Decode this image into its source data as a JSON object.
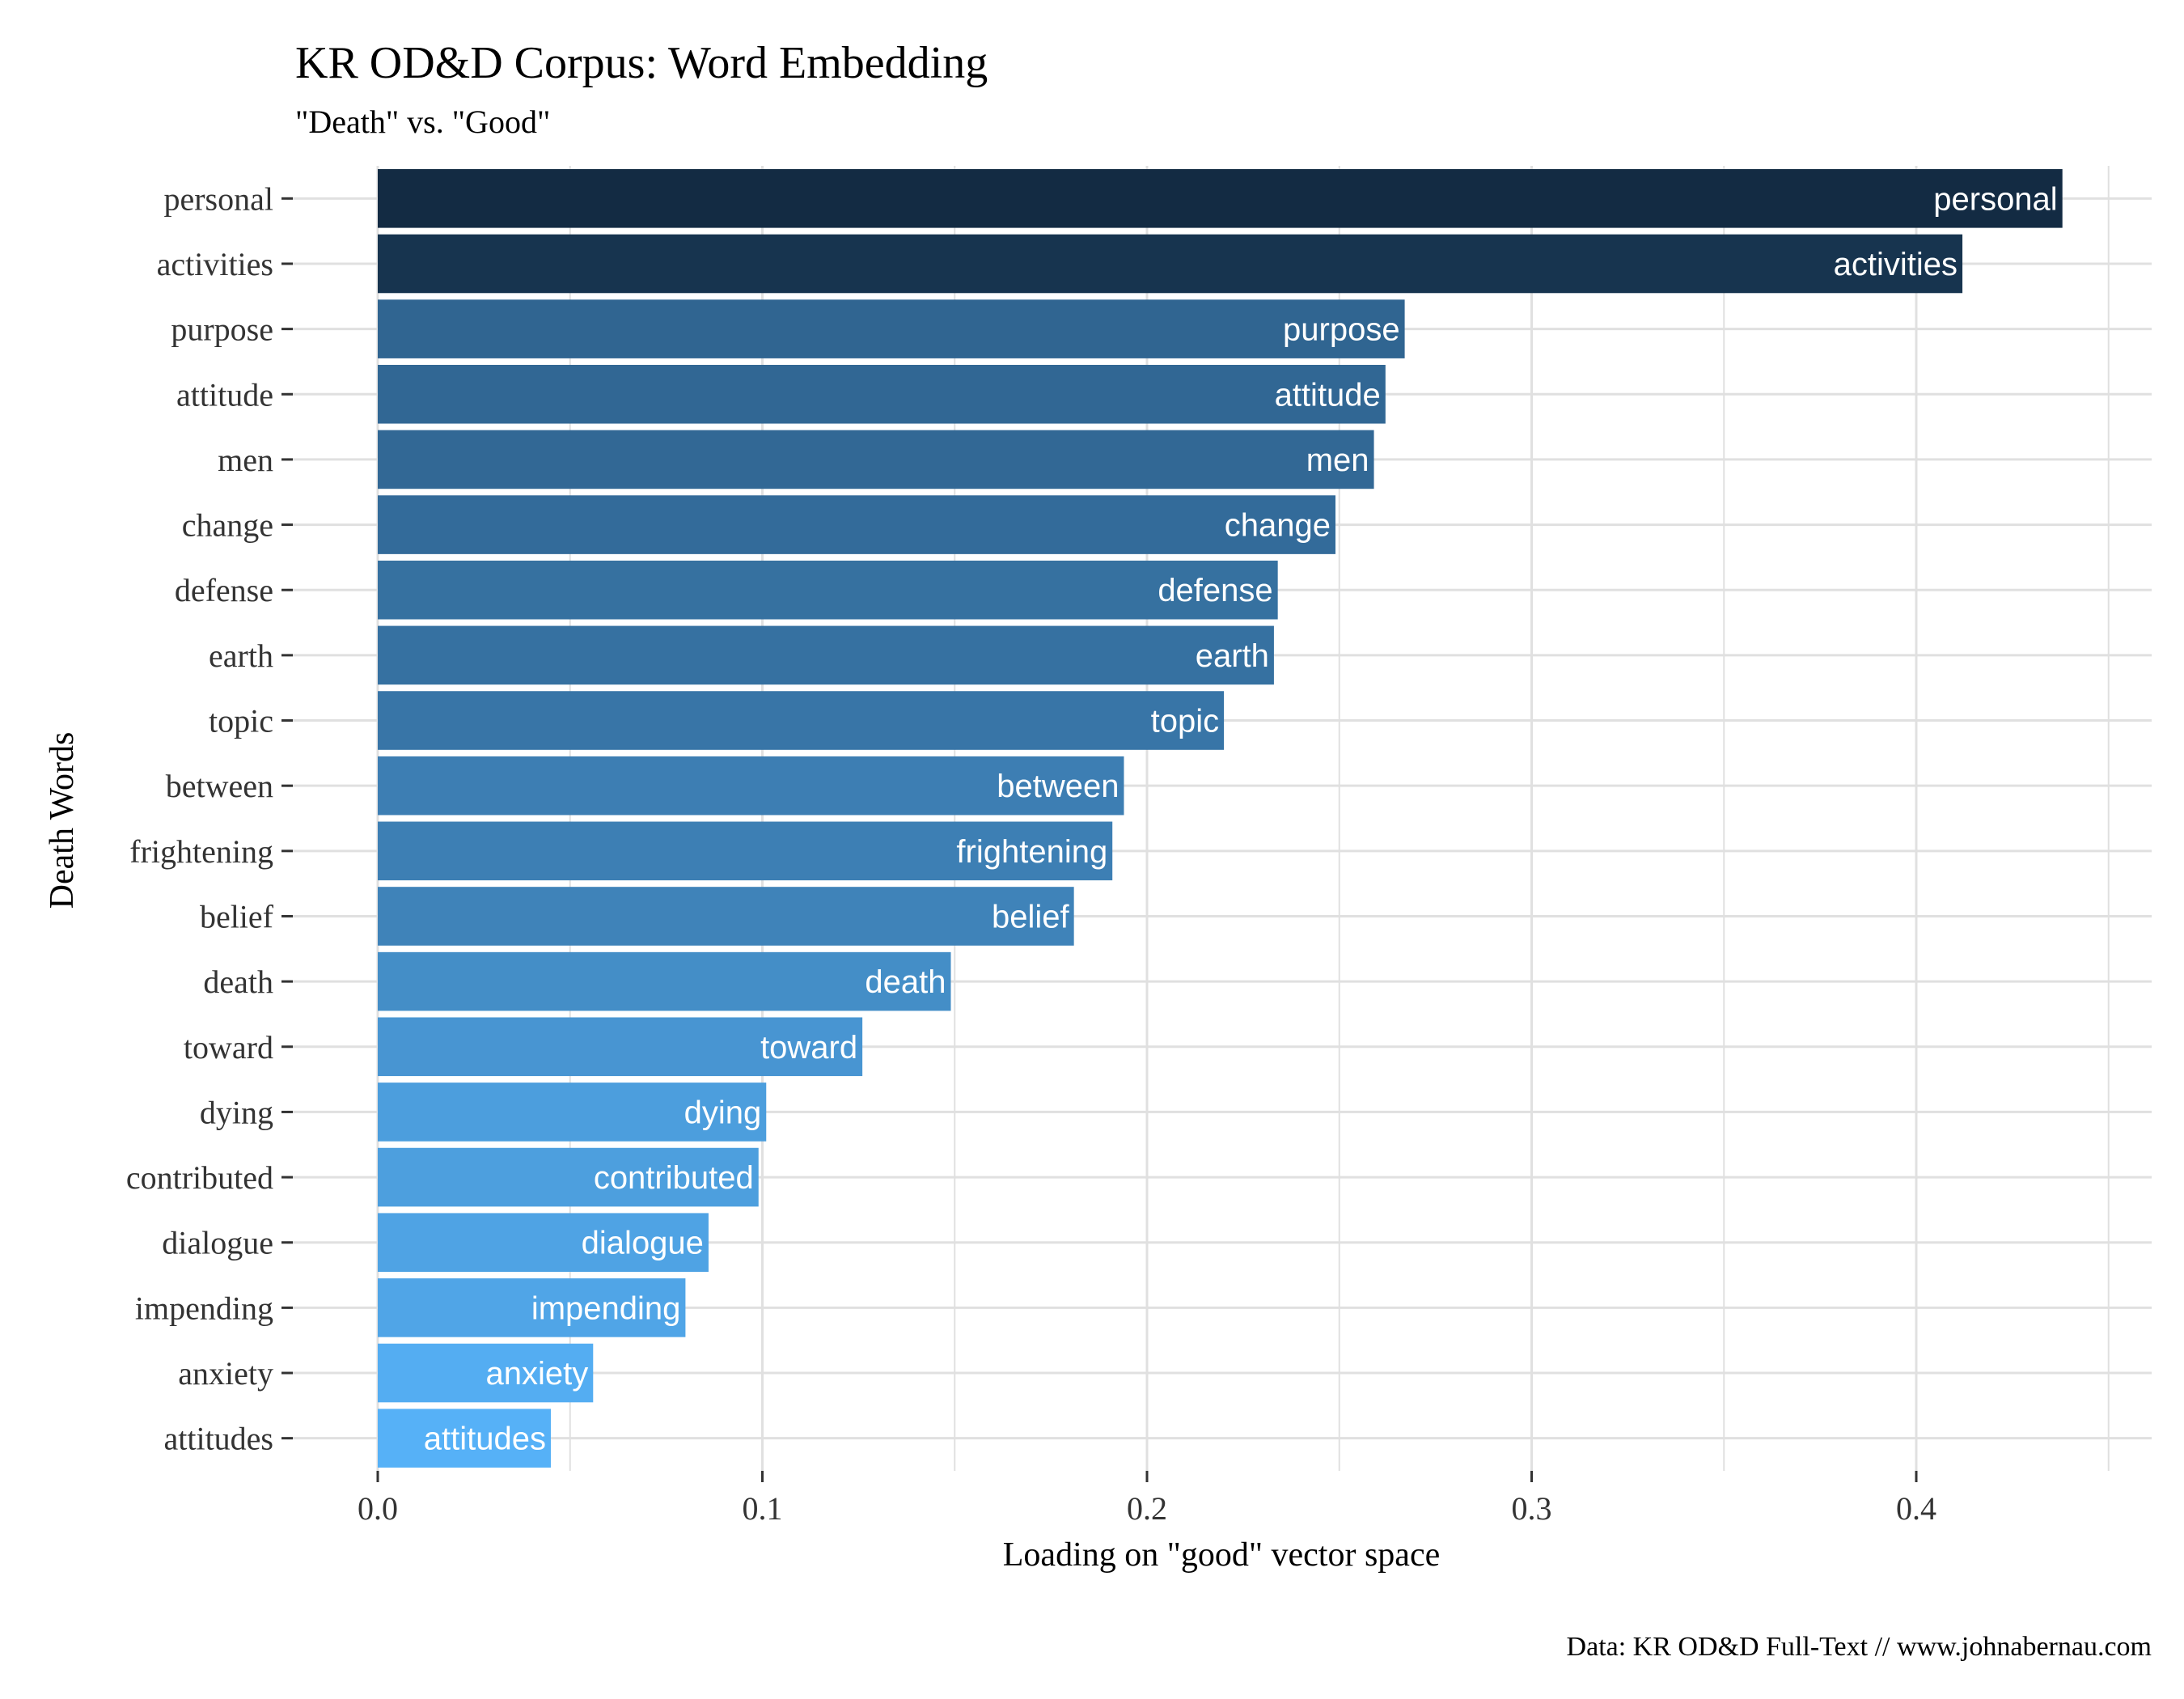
{
  "chart_data": {
    "type": "bar",
    "orientation": "horizontal",
    "title": "KR OD&D Corpus: Word Embedding",
    "subtitle": "\"Death\" vs. \"Good\"",
    "xlabel": "Loading on \"good\" vector space",
    "ylabel": "Death Words",
    "caption": "Data: KR OD&D Full-Text // www.johnabernau.com",
    "xlim": [
      0,
      0.45
    ],
    "xticks": [
      0.0,
      0.1,
      0.2,
      0.3,
      0.4
    ],
    "xtick_labels": [
      "0.0",
      "0.1",
      "0.2",
      "0.3",
      "0.4"
    ],
    "grid": true,
    "categories": [
      "personal",
      "activities",
      "purpose",
      "attitude",
      "men",
      "change",
      "defense",
      "earth",
      "topic",
      "between",
      "frightening",
      "belief",
      "death",
      "toward",
      "dying",
      "contributed",
      "dialogue",
      "impending",
      "anxiety",
      "attitudes"
    ],
    "values": [
      0.438,
      0.412,
      0.267,
      0.262,
      0.259,
      0.249,
      0.234,
      0.233,
      0.22,
      0.194,
      0.191,
      0.181,
      0.149,
      0.126,
      0.101,
      0.099,
      0.086,
      0.08,
      0.056,
      0.045
    ],
    "colors": {
      "high": "#132B43",
      "low": "#56B1F7",
      "grid": "#e0e0e0",
      "label": "#ffffff"
    }
  }
}
